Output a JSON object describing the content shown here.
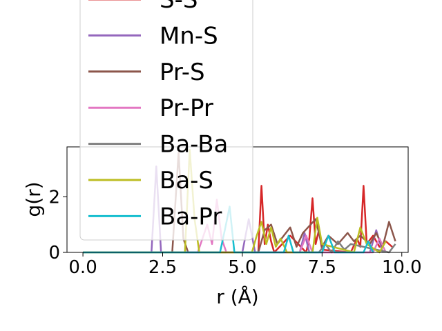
{
  "chart_data": {
    "type": "line",
    "xlabel": "r (Å)",
    "ylabel": "g(r)",
    "xlim": [
      -0.5,
      10.2
    ],
    "ylim": [
      0,
      3.8
    ],
    "x_ticks": [
      "0.0",
      "2.5",
      "5.0",
      "7.5",
      "10.0"
    ],
    "x_tick_values": [
      0,
      2.5,
      5,
      7.5,
      10
    ],
    "y_ticks": [
      "0",
      "2"
    ],
    "y_tick_values": [
      0,
      2
    ],
    "grid": false,
    "legend_position": "upper-left",
    "series": [
      {
        "name": "S-S",
        "color": "#d62728",
        "x": [
          0,
          5.0,
          5.5,
          5.6,
          5.7,
          5.8,
          5.9,
          6.0,
          6.5,
          7.0,
          7.1,
          7.2,
          7.3,
          7.4,
          7.5,
          8.4,
          8.6,
          8.7,
          8.8,
          8.9,
          9.1,
          9.3,
          9.5,
          9.7
        ],
        "values": [
          0,
          0,
          0,
          2.4,
          0.3,
          1.0,
          0.4,
          0,
          0.6,
          0,
          0.5,
          1.95,
          0.3,
          0.8,
          0.1,
          0,
          0.5,
          0.2,
          2.4,
          0.3,
          0.6,
          0.2,
          0.4,
          0.2
        ]
      },
      {
        "name": "Mn-S",
        "color": "#9467bd",
        "x": [
          0,
          2.15,
          2.3,
          2.45,
          2.6,
          5.0,
          5.2,
          5.4,
          6.0,
          6.8,
          6.95,
          7.1,
          9.0,
          9.2,
          9.4
        ],
        "values": [
          0,
          0,
          3.1,
          0,
          0,
          0,
          1.2,
          0,
          0,
          0,
          0.7,
          0,
          0,
          0.8,
          0
        ]
      },
      {
        "name": "Pr-S",
        "color": "#8c564b",
        "x": [
          0,
          2.8,
          3.0,
          3.15,
          3.3,
          5.5,
          5.7,
          5.9,
          6.1,
          6.3,
          6.5,
          6.7,
          6.9,
          7.3,
          7.5,
          7.7,
          8.0,
          8.3,
          8.5,
          8.7,
          9.0,
          9.2,
          9.4,
          9.6,
          9.8
        ],
        "values": [
          0,
          0,
          3.6,
          0.5,
          0,
          0,
          0.8,
          1.0,
          0.3,
          0.6,
          0.9,
          0.2,
          0.7,
          1.2,
          0.2,
          0.6,
          0.3,
          0.7,
          0.4,
          0.6,
          0.3,
          0.7,
          0.2,
          1.1,
          0.4
        ]
      },
      {
        "name": "Pr-Pr",
        "color": "#e377c2",
        "x": [
          0,
          3.6,
          3.75,
          3.9,
          4.05,
          4.2,
          4.35,
          4.5,
          6.8,
          7.0,
          7.2,
          9.1,
          9.3,
          9.5
        ],
        "values": [
          0,
          0,
          0.5,
          1.0,
          0.3,
          1.9,
          0.5,
          0,
          0,
          0.6,
          0,
          0,
          0.5,
          0
        ]
      },
      {
        "name": "Ba-Ba",
        "color": "#7f7f7f",
        "x": [
          0,
          7.4,
          7.6,
          7.8,
          8.0,
          8.2,
          8.4,
          9.6,
          9.8
        ],
        "values": [
          0,
          0,
          0.3,
          0,
          0.4,
          0.1,
          0.3,
          0,
          0.3
        ]
      },
      {
        "name": "Ba-S",
        "color": "#bcbd22",
        "x": [
          0,
          3.2,
          3.35,
          3.5,
          3.65,
          5.3,
          5.45,
          5.6,
          5.75,
          5.9,
          6.05,
          6.2,
          6.4,
          7.2,
          7.35,
          7.5,
          8.5,
          8.7,
          8.9,
          9.3,
          9.5
        ],
        "values": [
          0,
          0,
          3.7,
          1.2,
          0,
          0,
          0.6,
          1.1,
          0.3,
          0.9,
          0.2,
          0.5,
          0,
          0,
          1.25,
          0.3,
          0,
          0.9,
          0.3,
          0,
          0.4
        ]
      },
      {
        "name": "Ba-Pr",
        "color": "#17becf",
        "x": [
          0,
          4.3,
          4.45,
          4.6,
          4.75,
          6.3,
          6.45,
          6.6,
          7.5,
          7.7,
          7.9,
          8.8,
          8.95,
          9.1
        ],
        "values": [
          0,
          0,
          0.8,
          1.65,
          0,
          0,
          0.6,
          0,
          0,
          0.6,
          0,
          0,
          0.4,
          0
        ]
      }
    ]
  }
}
